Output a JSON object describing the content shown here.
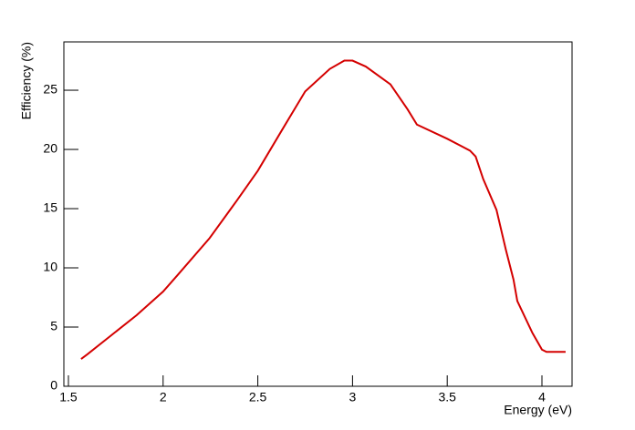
{
  "chart_data": {
    "type": "line",
    "xlabel": "Energy (eV)",
    "ylabel": "Efficiency (%)",
    "xlim": [
      1.476,
      4.159
    ],
    "ylim": [
      0,
      29.08
    ],
    "xticks": [
      1.5,
      2,
      2.5,
      3,
      3.5,
      4
    ],
    "yticks": [
      0,
      5,
      10,
      15,
      20,
      25
    ],
    "series": [
      {
        "color": "#d40000",
        "x": [
          1.567,
          1.6,
          1.726,
          1.86,
          2.0,
          2.077,
          2.245,
          2.39,
          2.5,
          2.63,
          2.75,
          2.88,
          2.957,
          3.0,
          3.07,
          3.2,
          3.29,
          3.34,
          3.5,
          3.62,
          3.65,
          3.69,
          3.76,
          3.81,
          3.85,
          3.87,
          3.95,
          4.0,
          4.024,
          4.125
        ],
        "values": [
          2.3,
          2.7,
          4.3,
          6.0,
          8.0,
          9.4,
          12.5,
          15.7,
          18.2,
          21.7,
          24.9,
          26.8,
          27.5,
          27.5,
          27.0,
          25.5,
          23.4,
          22.1,
          20.9,
          19.9,
          19.4,
          17.5,
          14.9,
          11.5,
          9.0,
          7.2,
          4.5,
          3.1,
          2.9,
          2.9
        ]
      }
    ]
  }
}
